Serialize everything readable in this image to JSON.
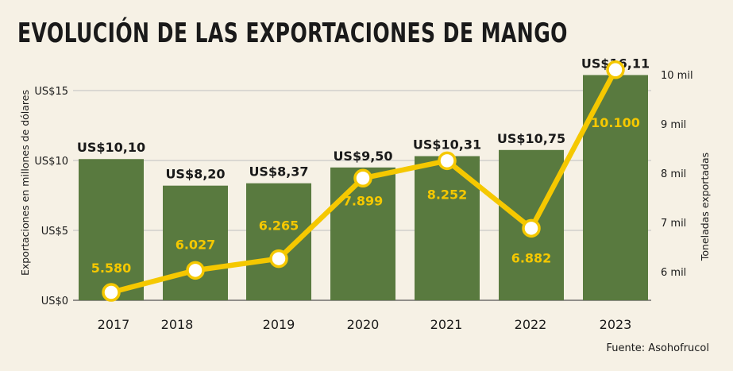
{
  "title": "EVOLUCIÓN DE LAS EXPORTACIONES DE MANGO",
  "source": "Fuente: Asohofrucol",
  "colors": {
    "bar": "#597a3f",
    "line": "#f5c800",
    "background": "#f6f1e5",
    "text": "#1a1a1a"
  },
  "chart_data": {
    "type": "bar",
    "categories": [
      "2017",
      "2018",
      "2019",
      "2020",
      "2021",
      "2022",
      "2023"
    ],
    "series": [
      {
        "name": "Exportaciones en millones de dólares",
        "type": "bar",
        "axis": "left",
        "values": [
          10.1,
          8.2,
          8.37,
          9.5,
          10.31,
          10.75,
          16.11
        ],
        "labels": [
          "US$10,10",
          "US$8,20",
          "US$8,37",
          "US$9,50",
          "US$10,31",
          "US$10,75",
          "US$16,11"
        ]
      },
      {
        "name": "Toneladas exportadas",
        "type": "line",
        "axis": "right",
        "values": [
          5580,
          6027,
          6265,
          7899,
          8252,
          6882,
          10100
        ],
        "labels": [
          "5.580",
          "6.027",
          "6.265",
          "7.899",
          "8.252",
          "6.882",
          "10.100"
        ]
      }
    ],
    "ylabel_left": "Exportaciones en millones de dólares",
    "ylabel_right": "Toneladas exportadas",
    "ylim_left": [
      0,
      17
    ],
    "ylim_right": [
      5.6,
      10
    ],
    "left_ticks": [
      {
        "value": 0,
        "label": "US$0"
      },
      {
        "value": 5,
        "label": "US$5"
      },
      {
        "value": 10,
        "label": "US$10"
      },
      {
        "value": 15,
        "label": "US$15"
      }
    ],
    "right_ticks": [
      {
        "value": 6,
        "label": "6 mil"
      },
      {
        "value": 7,
        "label": "7 mil"
      },
      {
        "value": 8,
        "label": "8 mil"
      },
      {
        "value": 9,
        "label": "9 mil"
      },
      {
        "value": 10,
        "label": "10 mil"
      }
    ],
    "grid": true
  }
}
